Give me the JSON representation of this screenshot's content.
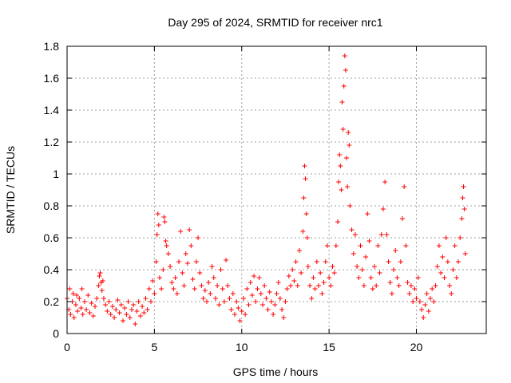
{
  "chart_data": {
    "type": "scatter",
    "title": "Day 295 of 2024, SRMTID for receiver nrc1",
    "xlabel": "GPS time / hours",
    "ylabel": "SRMTID / TECUs",
    "xlim": [
      0,
      24
    ],
    "ylim": [
      0,
      1.8
    ],
    "xticks": [
      0,
      5,
      10,
      15,
      20
    ],
    "xtick_labels": [
      "0",
      "5",
      "10",
      "15",
      "20"
    ],
    "yticks": [
      0,
      0.2,
      0.4,
      0.6,
      0.8,
      1,
      1.2,
      1.4,
      1.6,
      1.8
    ],
    "ytick_labels": [
      "0",
      "0.2",
      "0.4",
      "0.6",
      "0.8",
      "1",
      "1.2",
      "1.4",
      "1.6",
      "1.8"
    ],
    "grid": true,
    "marker": "+",
    "color": "#ff0000",
    "series": [
      {
        "name": "SRMTID",
        "points": [
          [
            0.0,
            0.22
          ],
          [
            0.1,
            0.15
          ],
          [
            0.15,
            0.28
          ],
          [
            0.2,
            0.12
          ],
          [
            0.3,
            0.2
          ],
          [
            0.35,
            0.25
          ],
          [
            0.4,
            0.1
          ],
          [
            0.5,
            0.18
          ],
          [
            0.55,
            0.24
          ],
          [
            0.6,
            0.14
          ],
          [
            0.7,
            0.22
          ],
          [
            0.8,
            0.16
          ],
          [
            0.85,
            0.28
          ],
          [
            0.9,
            0.12
          ],
          [
            1.0,
            0.2
          ],
          [
            1.1,
            0.15
          ],
          [
            1.2,
            0.24
          ],
          [
            1.3,
            0.13
          ],
          [
            1.4,
            0.19
          ],
          [
            1.5,
            0.11
          ],
          [
            1.6,
            0.17
          ],
          [
            1.7,
            0.22
          ],
          [
            1.8,
            0.3
          ],
          [
            1.85,
            0.36
          ],
          [
            1.9,
            0.38
          ],
          [
            1.95,
            0.32
          ],
          [
            2.0,
            0.27
          ],
          [
            2.05,
            0.33
          ],
          [
            2.1,
            0.22
          ],
          [
            2.2,
            0.18
          ],
          [
            2.3,
            0.14
          ],
          [
            2.4,
            0.2
          ],
          [
            2.5,
            0.12
          ],
          [
            2.6,
            0.17
          ],
          [
            2.7,
            0.1
          ],
          [
            2.8,
            0.15
          ],
          [
            2.9,
            0.21
          ],
          [
            3.0,
            0.13
          ],
          [
            3.1,
            0.18
          ],
          [
            3.2,
            0.08
          ],
          [
            3.3,
            0.16
          ],
          [
            3.4,
            0.12
          ],
          [
            3.5,
            0.2
          ],
          [
            3.6,
            0.1
          ],
          [
            3.7,
            0.15
          ],
          [
            3.8,
            0.18
          ],
          [
            3.9,
            0.06
          ],
          [
            4.0,
            0.14
          ],
          [
            4.1,
            0.2
          ],
          [
            4.2,
            0.11
          ],
          [
            4.3,
            0.17
          ],
          [
            4.4,
            0.13
          ],
          [
            4.5,
            0.22
          ],
          [
            4.6,
            0.15
          ],
          [
            4.7,
            0.28
          ],
          [
            4.8,
            0.2
          ],
          [
            4.9,
            0.33
          ],
          [
            5.0,
            0.25
          ],
          [
            5.1,
            0.45
          ],
          [
            5.15,
            0.62
          ],
          [
            5.2,
            0.75
          ],
          [
            5.25,
            0.68
          ],
          [
            5.3,
            0.35
          ],
          [
            5.4,
            0.28
          ],
          [
            5.5,
            0.4
          ],
          [
            5.55,
            0.73
          ],
          [
            5.6,
            0.7
          ],
          [
            5.65,
            0.58
          ],
          [
            5.7,
            0.55
          ],
          [
            5.8,
            0.5
          ],
          [
            5.9,
            0.42
          ],
          [
            6.0,
            0.32
          ],
          [
            6.1,
            0.28
          ],
          [
            6.2,
            0.35
          ],
          [
            6.3,
            0.25
          ],
          [
            6.4,
            0.45
          ],
          [
            6.5,
            0.64
          ],
          [
            6.6,
            0.38
          ],
          [
            6.7,
            0.3
          ],
          [
            6.8,
            0.5
          ],
          [
            6.9,
            0.44
          ],
          [
            7.0,
            0.65
          ],
          [
            7.1,
            0.55
          ],
          [
            7.2,
            0.34
          ],
          [
            7.3,
            0.28
          ],
          [
            7.4,
            0.45
          ],
          [
            7.5,
            0.6
          ],
          [
            7.6,
            0.38
          ],
          [
            7.7,
            0.3
          ],
          [
            7.8,
            0.22
          ],
          [
            7.9,
            0.27
          ],
          [
            8.0,
            0.2
          ],
          [
            8.1,
            0.32
          ],
          [
            8.2,
            0.25
          ],
          [
            8.3,
            0.42
          ],
          [
            8.4,
            0.35
          ],
          [
            8.5,
            0.22
          ],
          [
            8.6,
            0.3
          ],
          [
            8.7,
            0.18
          ],
          [
            8.8,
            0.4
          ],
          [
            8.9,
            0.28
          ],
          [
            9.0,
            0.2
          ],
          [
            9.1,
            0.46
          ],
          [
            9.2,
            0.3
          ],
          [
            9.3,
            0.22
          ],
          [
            9.4,
            0.15
          ],
          [
            9.5,
            0.25
          ],
          [
            9.6,
            0.12
          ],
          [
            9.7,
            0.2
          ],
          [
            9.8,
            0.16
          ],
          [
            9.9,
            0.08
          ],
          [
            10.0,
            0.14
          ],
          [
            10.1,
            0.22
          ],
          [
            10.2,
            0.12
          ],
          [
            10.3,
            0.28
          ],
          [
            10.4,
            0.18
          ],
          [
            10.5,
            0.32
          ],
          [
            10.6,
            0.24
          ],
          [
            10.7,
            0.36
          ],
          [
            10.8,
            0.2
          ],
          [
            10.9,
            0.28
          ],
          [
            11.0,
            0.35
          ],
          [
            11.1,
            0.25
          ],
          [
            11.2,
            0.18
          ],
          [
            11.3,
            0.3
          ],
          [
            11.4,
            0.22
          ],
          [
            11.5,
            0.15
          ],
          [
            11.6,
            0.26
          ],
          [
            11.7,
            0.2
          ],
          [
            11.8,
            0.12
          ],
          [
            11.9,
            0.18
          ],
          [
            12.0,
            0.25
          ],
          [
            12.1,
            0.32
          ],
          [
            12.2,
            0.22
          ],
          [
            12.3,
            0.15
          ],
          [
            12.4,
            0.1
          ],
          [
            12.5,
            0.2
          ],
          [
            12.6,
            0.28
          ],
          [
            12.7,
            0.36
          ],
          [
            12.8,
            0.3
          ],
          [
            12.9,
            0.4
          ],
          [
            13.0,
            0.33
          ],
          [
            13.1,
            0.45
          ],
          [
            13.2,
            0.3
          ],
          [
            13.3,
            0.52
          ],
          [
            13.4,
            0.38
          ],
          [
            13.5,
            0.64
          ],
          [
            13.55,
            0.85
          ],
          [
            13.6,
            1.05
          ],
          [
            13.65,
            0.97
          ],
          [
            13.7,
            0.75
          ],
          [
            13.75,
            0.6
          ],
          [
            13.8,
            0.42
          ],
          [
            13.9,
            0.3
          ],
          [
            14.0,
            0.22
          ],
          [
            14.1,
            0.35
          ],
          [
            14.2,
            0.28
          ],
          [
            14.3,
            0.45
          ],
          [
            14.4,
            0.3
          ],
          [
            14.5,
            0.38
          ],
          [
            14.6,
            0.25
          ],
          [
            14.7,
            0.32
          ],
          [
            14.8,
            0.45
          ],
          [
            14.9,
            0.55
          ],
          [
            15.0,
            0.35
          ],
          [
            15.1,
            0.3
          ],
          [
            15.2,
            0.42
          ],
          [
            15.3,
            0.38
          ],
          [
            15.4,
            0.55
          ],
          [
            15.5,
            0.7
          ],
          [
            15.55,
            0.95
          ],
          [
            15.6,
            1.12
          ],
          [
            15.65,
            1.05
          ],
          [
            15.7,
            0.9
          ],
          [
            15.75,
            1.45
          ],
          [
            15.8,
            1.28
          ],
          [
            15.85,
            1.55
          ],
          [
            15.9,
            1.74
          ],
          [
            15.95,
            1.65
          ],
          [
            16.0,
            1.1
          ],
          [
            16.05,
            0.92
          ],
          [
            16.1,
            1.26
          ],
          [
            16.15,
            1.18
          ],
          [
            16.2,
            0.8
          ],
          [
            16.3,
            0.65
          ],
          [
            16.4,
            0.5
          ],
          [
            16.5,
            0.62
          ],
          [
            16.6,
            0.42
          ],
          [
            16.7,
            0.35
          ],
          [
            16.8,
            0.55
          ],
          [
            16.9,
            0.4
          ],
          [
            17.0,
            0.3
          ],
          [
            17.1,
            0.48
          ],
          [
            17.2,
            0.75
          ],
          [
            17.3,
            0.58
          ],
          [
            17.4,
            0.35
          ],
          [
            17.5,
            0.28
          ],
          [
            17.6,
            0.42
          ],
          [
            17.7,
            0.3
          ],
          [
            17.8,
            0.55
          ],
          [
            17.9,
            0.38
          ],
          [
            18.0,
            0.62
          ],
          [
            18.1,
            0.78
          ],
          [
            18.2,
            0.95
          ],
          [
            18.3,
            0.62
          ],
          [
            18.4,
            0.45
          ],
          [
            18.5,
            0.32
          ],
          [
            18.6,
            0.25
          ],
          [
            18.7,
            0.4
          ],
          [
            18.8,
            0.52
          ],
          [
            18.9,
            0.35
          ],
          [
            19.0,
            0.3
          ],
          [
            19.1,
            0.45
          ],
          [
            19.2,
            0.72
          ],
          [
            19.3,
            0.92
          ],
          [
            19.4,
            0.55
          ],
          [
            19.5,
            0.32
          ],
          [
            19.6,
            0.25
          ],
          [
            19.7,
            0.3
          ],
          [
            19.8,
            0.2
          ],
          [
            19.9,
            0.28
          ],
          [
            20.0,
            0.22
          ],
          [
            20.1,
            0.35
          ],
          [
            20.2,
            0.2
          ],
          [
            20.3,
            0.15
          ],
          [
            20.4,
            0.1
          ],
          [
            20.5,
            0.18
          ],
          [
            20.6,
            0.25
          ],
          [
            20.7,
            0.14
          ],
          [
            20.8,
            0.22
          ],
          [
            20.9,
            0.28
          ],
          [
            21.0,
            0.2
          ],
          [
            21.1,
            0.3
          ],
          [
            21.2,
            0.42
          ],
          [
            21.3,
            0.55
          ],
          [
            21.4,
            0.38
          ],
          [
            21.5,
            0.48
          ],
          [
            21.6,
            0.35
          ],
          [
            21.7,
            0.6
          ],
          [
            21.8,
            0.45
          ],
          [
            21.9,
            0.3
          ],
          [
            22.0,
            0.25
          ],
          [
            22.1,
            0.4
          ],
          [
            22.2,
            0.55
          ],
          [
            22.3,
            0.35
          ],
          [
            22.4,
            0.45
          ],
          [
            22.5,
            0.6
          ],
          [
            22.6,
            0.72
          ],
          [
            22.65,
            0.85
          ],
          [
            22.7,
            0.92
          ],
          [
            22.75,
            0.78
          ],
          [
            22.8,
            0.5
          ]
        ]
      }
    ]
  }
}
